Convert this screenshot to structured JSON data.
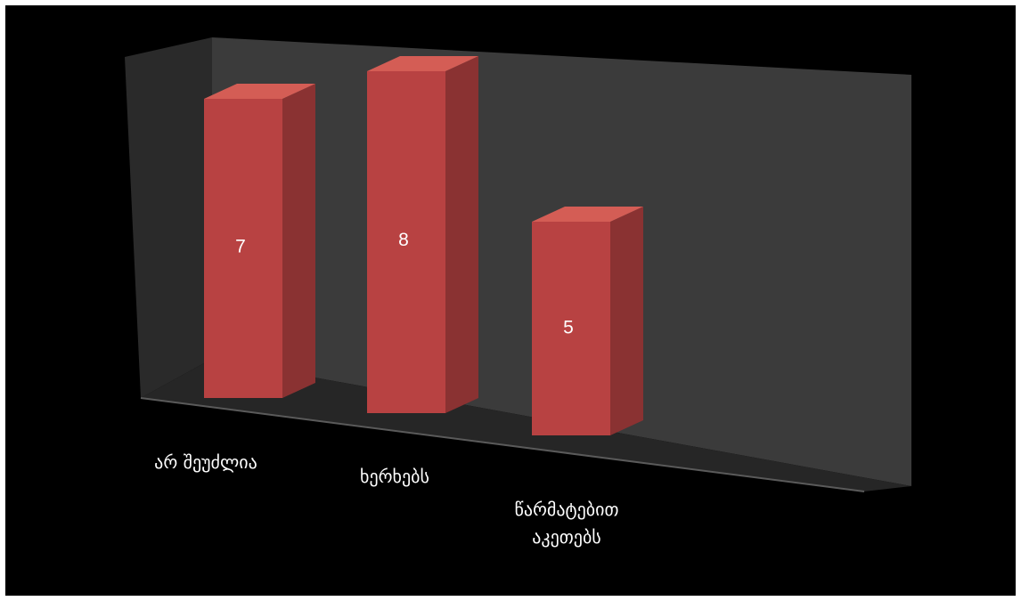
{
  "chart_data": {
    "type": "bar",
    "categories": [
      [
        "არ შეუძლია"
      ],
      [
        "ხერხებს"
      ],
      [
        "წარმატებით",
        "აკეთებს"
      ]
    ],
    "values": [
      7,
      8,
      5
    ],
    "data_labels": [
      "7",
      "8",
      "5"
    ],
    "title": "",
    "xlabel": "",
    "ylabel": "",
    "ylim": [
      0,
      10
    ],
    "grid": false,
    "legend": "none",
    "three_d": true,
    "colors": {
      "background": "#000000",
      "back_wall": "#3b3b3b",
      "side_wall": "#2a2a2a",
      "floor": "#262626",
      "bar_front": "#b84242",
      "bar_side": "#8a3232",
      "bar_top": "#d45d55",
      "label": "#ffffff"
    }
  }
}
